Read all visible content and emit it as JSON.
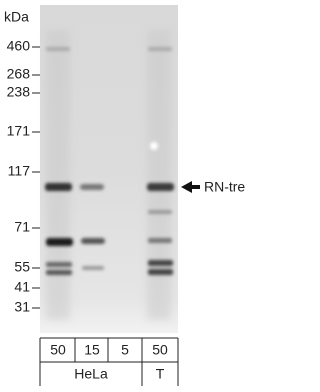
{
  "marker_unit": "kDa",
  "markers": [
    "460",
    "268",
    "238",
    "171",
    "117",
    "71",
    "55",
    "41",
    "31"
  ],
  "band_label": "RN-tre",
  "lanes": [
    "50",
    "15",
    "5",
    "50"
  ],
  "samples": [
    "HeLa",
    "T"
  ]
}
